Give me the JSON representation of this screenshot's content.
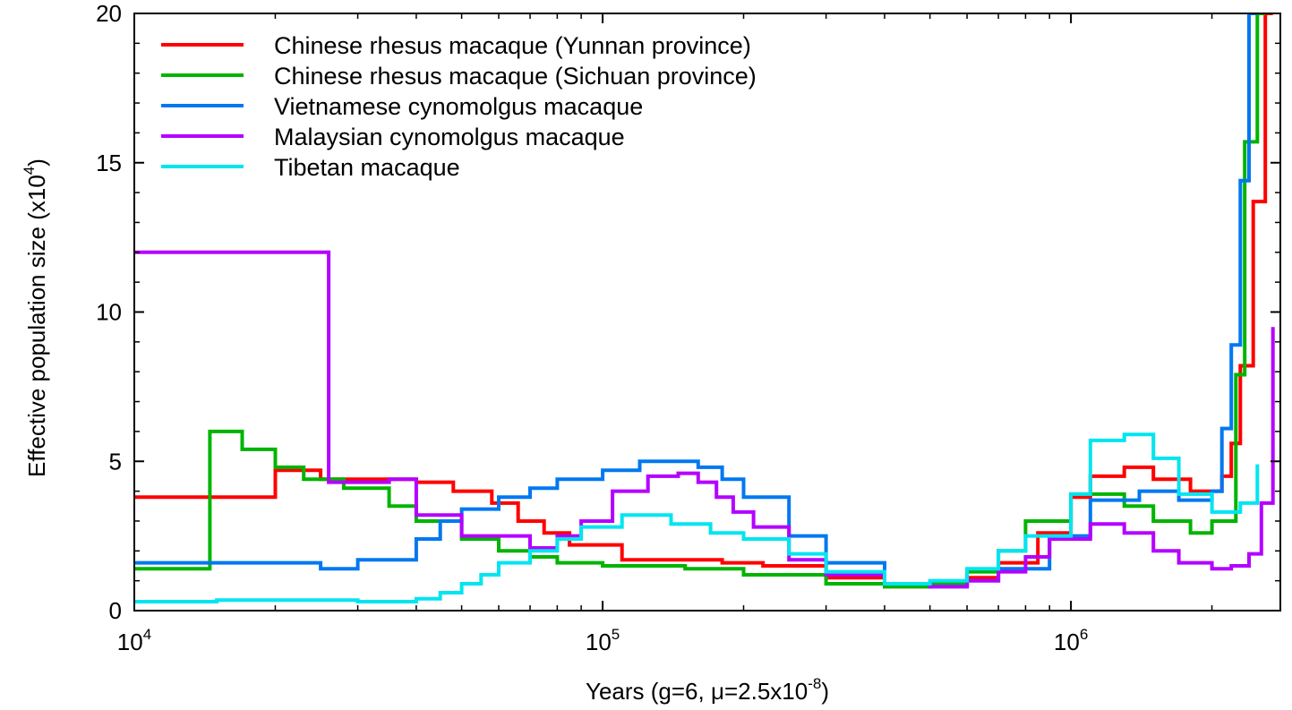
{
  "chart_data": {
    "type": "line",
    "step": true,
    "x_scale": "log",
    "xlim": [
      10000,
      2800000
    ],
    "ylim": [
      0,
      20
    ],
    "xlabel": {
      "text": "Years (g=6, μ=2.5x10",
      "superscript": "-8",
      "suffix": ")"
    },
    "ylabel": {
      "text": "Effective population size (x10",
      "superscript": "4",
      "suffix": ")"
    },
    "x_ticks": [
      {
        "base": "10",
        "exp": "4",
        "value": 10000
      },
      {
        "base": "10",
        "exp": "5",
        "value": 100000
      },
      {
        "base": "10",
        "exp": "6",
        "value": 1000000
      }
    ],
    "y_ticks": [
      {
        "label": "0",
        "value": 0
      },
      {
        "label": "5",
        "value": 5
      },
      {
        "label": "10",
        "value": 10
      },
      {
        "label": "15",
        "value": 15
      },
      {
        "label": "20",
        "value": 20
      }
    ],
    "grid": false,
    "legend_position": "top-left",
    "series": [
      {
        "name": "Chinese rhesus macaque (Yunnan province)",
        "color": "#ff0000",
        "x": [
          10000,
          20000,
          25000,
          40000,
          48000,
          58000,
          66000,
          75000,
          85000,
          110000,
          150000,
          180000,
          220000,
          300000,
          400000,
          500000,
          600000,
          700000,
          850000,
          1000000,
          1100000,
          1300000,
          1500000,
          1800000,
          2100000,
          2200000,
          2300000,
          2450000,
          2600000,
          2700000
        ],
        "y": [
          3.8,
          4.7,
          4.4,
          4.3,
          4.0,
          3.6,
          3.0,
          2.6,
          2.2,
          1.7,
          1.7,
          1.6,
          1.5,
          1.1,
          0.8,
          0.85,
          1.1,
          1.6,
          2.6,
          3.8,
          4.5,
          4.8,
          4.4,
          4.0,
          4.5,
          5.6,
          8.2,
          13.7,
          20.0,
          20.0
        ]
      },
      {
        "name": "Chinese rhesus macaque (Sichuan province)",
        "color": "#00b400",
        "x": [
          10000,
          14500,
          17000,
          20000,
          23000,
          28000,
          35000,
          40000,
          50000,
          60000,
          70000,
          80000,
          100000,
          150000,
          200000,
          300000,
          400000,
          500000,
          600000,
          700000,
          800000,
          1000000,
          1300000,
          1500000,
          1800000,
          2000000,
          2250000,
          2350000,
          2500000,
          2600000
        ],
        "y": [
          1.4,
          6.0,
          5.4,
          4.8,
          4.4,
          4.1,
          3.5,
          3.0,
          2.4,
          2.0,
          1.8,
          1.6,
          1.5,
          1.4,
          1.2,
          0.9,
          0.8,
          0.9,
          1.3,
          2.0,
          3.0,
          3.9,
          3.5,
          3.0,
          2.6,
          3.0,
          7.9,
          15.7,
          20.0,
          20.0
        ]
      },
      {
        "name": "Vietnamese cynomolgus macaque",
        "color": "#0078f0",
        "x": [
          10000,
          25000,
          30000,
          40000,
          45000,
          50000,
          60000,
          70000,
          80000,
          100000,
          120000,
          140000,
          160000,
          180000,
          200000,
          250000,
          300000,
          400000,
          500000,
          600000,
          700000,
          900000,
          1100000,
          1400000,
          1700000,
          2000000,
          2100000,
          2200000,
          2300000,
          2400000,
          2500000
        ],
        "y": [
          1.6,
          1.4,
          1.7,
          2.4,
          3.0,
          3.4,
          3.8,
          4.1,
          4.4,
          4.7,
          5.0,
          5.0,
          4.8,
          4.4,
          3.8,
          2.5,
          1.6,
          0.9,
          0.8,
          1.0,
          1.4,
          2.5,
          3.7,
          4.0,
          3.7,
          4.0,
          6.1,
          8.9,
          14.4,
          20.0,
          20.0
        ]
      },
      {
        "name": "Malaysian cynomolgus macaque",
        "color": "#b400ff",
        "x": [
          10000,
          26000,
          35000,
          40000,
          50000,
          70000,
          80000,
          90000,
          105000,
          125000,
          145000,
          160000,
          175000,
          190000,
          210000,
          250000,
          300000,
          400000,
          500000,
          600000,
          700000,
          800000,
          900000,
          1100000,
          1300000,
          1500000,
          1700000,
          2000000,
          2200000,
          2400000,
          2550000,
          2700000
        ],
        "y": [
          12.0,
          4.3,
          4.4,
          3.2,
          2.5,
          2.1,
          2.5,
          3.0,
          4.0,
          4.5,
          4.6,
          4.3,
          3.8,
          3.3,
          2.8,
          1.7,
          1.2,
          0.9,
          0.8,
          1.0,
          1.3,
          1.8,
          2.4,
          2.9,
          2.6,
          2.0,
          1.6,
          1.4,
          1.5,
          1.9,
          3.6,
          9.5
        ]
      },
      {
        "name": "Tibetan macaque",
        "color": "#00e5f0",
        "x": [
          10000,
          15000,
          20000,
          30000,
          40000,
          45000,
          50000,
          55000,
          60000,
          70000,
          80000,
          90000,
          110000,
          140000,
          170000,
          200000,
          250000,
          300000,
          400000,
          500000,
          600000,
          700000,
          800000,
          1000000,
          1100000,
          1300000,
          1500000,
          1700000,
          2000000,
          2300000,
          2500000
        ],
        "y": [
          0.3,
          0.35,
          0.35,
          0.3,
          0.4,
          0.6,
          0.9,
          1.2,
          1.6,
          2.0,
          2.4,
          2.8,
          3.2,
          2.9,
          2.6,
          2.4,
          1.9,
          1.3,
          0.9,
          1.0,
          1.4,
          2.0,
          2.5,
          3.9,
          5.7,
          5.9,
          5.1,
          3.9,
          3.3,
          3.6,
          4.9
        ]
      }
    ]
  }
}
